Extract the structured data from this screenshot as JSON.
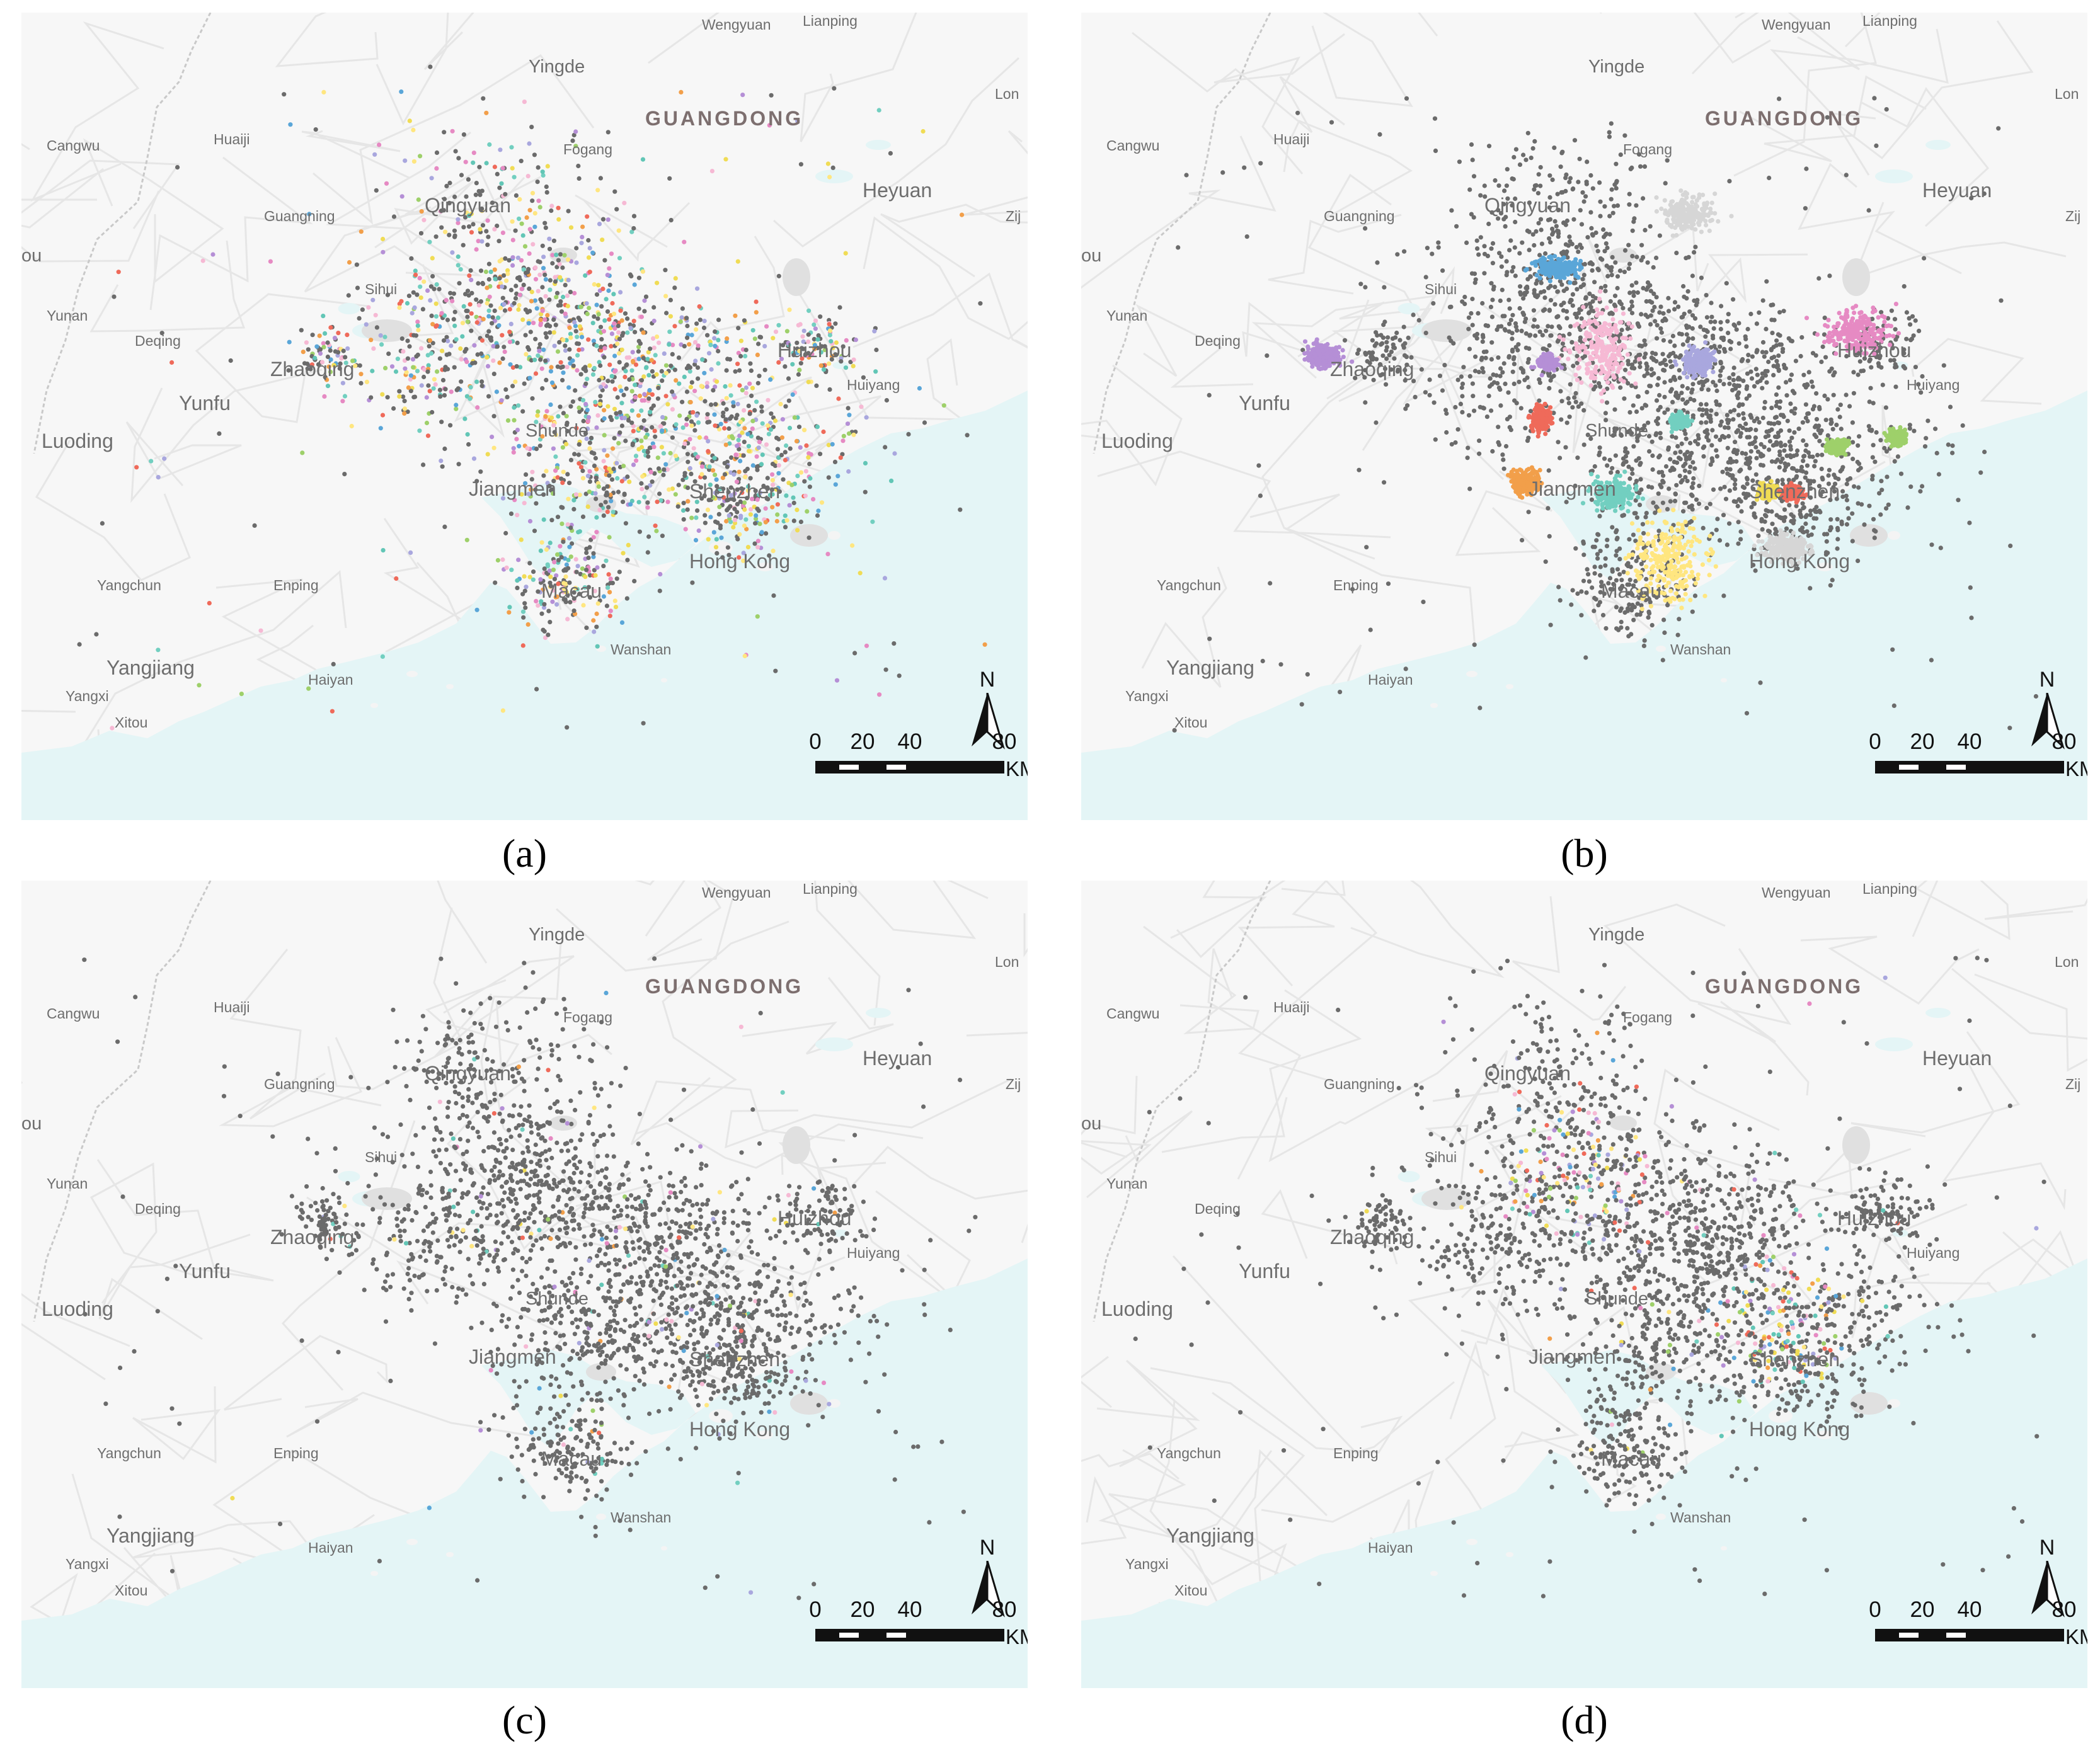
{
  "places": [
    {
      "id": "wengyuan",
      "text": "Wengyuan",
      "size": "small"
    },
    {
      "id": "lianping",
      "text": "Lianping",
      "size": "small"
    },
    {
      "id": "yingde",
      "text": "Yingde",
      "size": "mid"
    },
    {
      "id": "guangdong",
      "text": "GUANGDONG",
      "size": "province"
    },
    {
      "id": "long",
      "text": "Lon",
      "size": "small"
    },
    {
      "id": "cangwu",
      "text": "Cangwu",
      "size": "small"
    },
    {
      "id": "huaiji",
      "text": "Huaiji",
      "size": "small"
    },
    {
      "id": "fogang",
      "text": "Fogang",
      "size": "small"
    },
    {
      "id": "heyuan",
      "text": "Heyuan",
      "size": "big"
    },
    {
      "id": "qingyuan",
      "text": "Qingyuan",
      "size": "big"
    },
    {
      "id": "guangning",
      "text": "Guangning",
      "size": "small"
    },
    {
      "id": "zij",
      "text": "Zij",
      "size": "small"
    },
    {
      "id": "ou",
      "text": "ou",
      "size": "mid"
    },
    {
      "id": "sihui",
      "text": "Sihui",
      "size": "small"
    },
    {
      "id": "yunan",
      "text": "Yunan",
      "size": "small"
    },
    {
      "id": "deqing",
      "text": "Deqing",
      "size": "small"
    },
    {
      "id": "zhaoqing",
      "text": "Zhaoqing",
      "size": "big"
    },
    {
      "id": "huizhou",
      "text": "Huizhou",
      "size": "big"
    },
    {
      "id": "yunfu",
      "text": "Yunfu",
      "size": "big"
    },
    {
      "id": "huiyang",
      "text": "Huiyang",
      "size": "small"
    },
    {
      "id": "luoding",
      "text": "Luoding",
      "size": "big"
    },
    {
      "id": "shunde",
      "text": "Shunde",
      "size": "mid"
    },
    {
      "id": "jiangmen",
      "text": "Jiangmen",
      "size": "big"
    },
    {
      "id": "shenzhen",
      "text": "Shenzhen",
      "size": "big"
    },
    {
      "id": "hongkong",
      "text": "Hong Kong",
      "size": "big"
    },
    {
      "id": "yangchun",
      "text": "Yangchun",
      "size": "small"
    },
    {
      "id": "enping",
      "text": "Enping",
      "size": "small"
    },
    {
      "id": "macau",
      "text": "Macau",
      "size": "big"
    },
    {
      "id": "wanshan",
      "text": "Wanshan",
      "size": "small"
    },
    {
      "id": "yangjiang",
      "text": "Yangjiang",
      "size": "big"
    },
    {
      "id": "haiyan",
      "text": "Haiyan",
      "size": "small"
    },
    {
      "id": "yangxi",
      "text": "Yangxi",
      "size": "small"
    },
    {
      "id": "xitou",
      "text": "Xitou",
      "size": "small"
    }
  ],
  "north_label": "N",
  "scale": {
    "ticks": [
      "0",
      "20",
      "40",
      "80"
    ],
    "unit": "KM"
  },
  "panels": [
    {
      "id": "a",
      "caption": "(a)",
      "style": "colorful-everywhere"
    },
    {
      "id": "b",
      "caption": "(b)",
      "style": "large-clusters"
    },
    {
      "id": "c",
      "caption": "(c)",
      "style": "mostly-noise"
    },
    {
      "id": "d",
      "caption": "(d)",
      "style": "small-clusters-center"
    }
  ],
  "colors": {
    "land": "#f7f7f7",
    "water": "#e4f5f6",
    "road": "#e6e6e6",
    "noise_point": "#6b6b6b",
    "cluster_palette": [
      "#5aa6d8",
      "#f29f4a",
      "#f0dc55",
      "#9ed06a",
      "#ef6a5a",
      "#b58fd6",
      "#72cfc0",
      "#f6b9d4",
      "#a9a7de",
      "#ffe680",
      "#e68ac3",
      "#62c6b6"
    ]
  }
}
